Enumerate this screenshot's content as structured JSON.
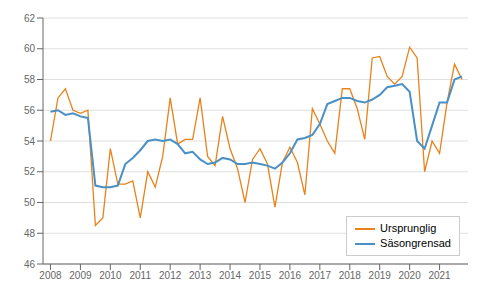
{
  "chart_data": {
    "type": "line",
    "title": "",
    "x": [
      2008,
      2008.25,
      2008.5,
      2008.75,
      2009,
      2009.25,
      2009.5,
      2009.75,
      2010,
      2010.25,
      2010.5,
      2010.75,
      2011,
      2011.25,
      2011.5,
      2011.75,
      2012,
      2012.25,
      2012.5,
      2012.75,
      2013,
      2013.25,
      2013.5,
      2013.75,
      2014,
      2014.25,
      2014.5,
      2014.75,
      2015,
      2015.25,
      2015.5,
      2015.75,
      2016,
      2016.25,
      2016.5,
      2016.75,
      2017,
      2017.25,
      2017.5,
      2017.75,
      2018,
      2018.25,
      2018.5,
      2018.75,
      2019,
      2019.25,
      2019.5,
      2019.75,
      2020,
      2020.25,
      2020.5,
      2020.75,
      2021,
      2021.25,
      2021.5,
      2021.75
    ],
    "series": [
      {
        "name": "Ursprunglig",
        "color": "#E8821A",
        "values": [
          54.0,
          56.8,
          57.4,
          56.0,
          55.8,
          56.0,
          48.5,
          49.0,
          53.5,
          51.2,
          51.2,
          51.4,
          49.0,
          52.0,
          51.0,
          53.0,
          56.8,
          53.8,
          54.1,
          54.1,
          56.8,
          53.0,
          52.4,
          55.6,
          53.5,
          52.2,
          50.0,
          52.8,
          53.5,
          52.5,
          49.7,
          52.6,
          53.6,
          52.6,
          50.5,
          56.1,
          55.1,
          54.0,
          53.2,
          57.4,
          57.4,
          56.1,
          54.1,
          59.4,
          59.5,
          58.2,
          57.7,
          58.2,
          60.1,
          59.4,
          52.0,
          54.0,
          53.2,
          56.5,
          59.0,
          58.0
        ]
      },
      {
        "name": "Säsongrensad",
        "color": "#4A90C4",
        "values": [
          55.9,
          56.0,
          55.7,
          55.8,
          55.6,
          55.5,
          51.1,
          51.0,
          51.0,
          51.1,
          52.5,
          52.9,
          53.4,
          54.0,
          54.1,
          54.0,
          54.1,
          53.8,
          53.2,
          53.3,
          52.8,
          52.5,
          52.6,
          52.9,
          52.8,
          52.5,
          52.5,
          52.6,
          52.5,
          52.4,
          52.2,
          52.6,
          53.2,
          54.1,
          54.2,
          54.4,
          55.1,
          56.4,
          56.6,
          56.8,
          56.8,
          56.6,
          56.5,
          56.7,
          57.0,
          57.5,
          57.6,
          57.7,
          57.2,
          54.0,
          53.5,
          55.0,
          56.5,
          56.5,
          58.0,
          58.2
        ]
      }
    ],
    "xlim": [
      2007.75,
      2021.95
    ],
    "xticks": [
      2008,
      2009,
      2010,
      2011,
      2012,
      2013,
      2014,
      2015,
      2016,
      2017,
      2018,
      2019,
      2020,
      2021
    ],
    "ylim": [
      46,
      62
    ],
    "yticks": [
      46,
      48,
      50,
      52,
      54,
      56,
      58,
      60,
      62
    ],
    "grid": true,
    "legend": "lower right"
  }
}
